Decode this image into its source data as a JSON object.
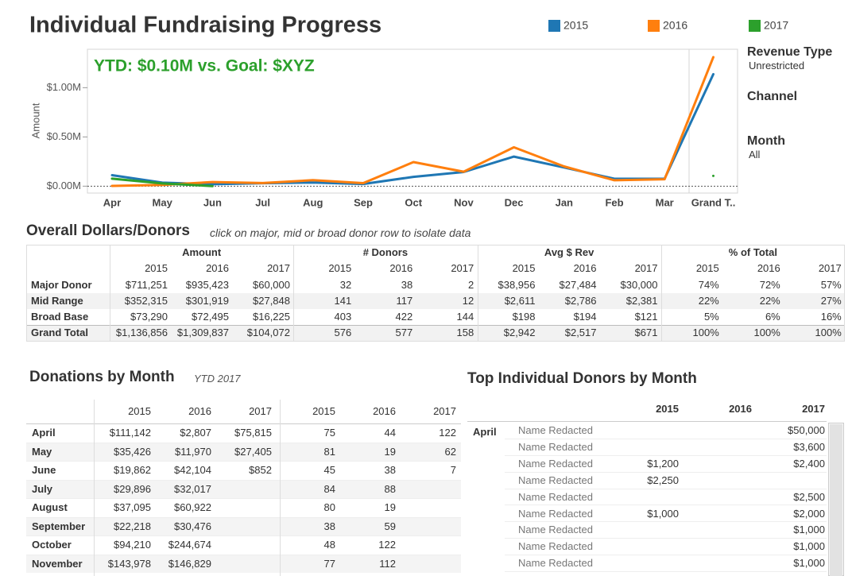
{
  "header": {
    "title": "Individual Fundraising Progress"
  },
  "chart_data": {
    "type": "line",
    "y_label": "Amount",
    "annotation": "YTD: $0.10M vs. Goal: $XYZ",
    "categories": [
      "Apr",
      "May",
      "Jun",
      "Jul",
      "Aug",
      "Sep",
      "Oct",
      "Nov",
      "Dec",
      "Jan",
      "Feb",
      "Mar",
      "Grand T.."
    ],
    "series": [
      {
        "name": "2015",
        "color": "#1f77b4",
        "values": [
          111142,
          35426,
          19862,
          29896,
          37095,
          22218,
          94210,
          143978,
          300000,
          190000,
          75000,
          75000,
          1136856
        ]
      },
      {
        "name": "2016",
        "color": "#ff7f0e",
        "values": [
          2807,
          11970,
          42104,
          32017,
          60922,
          30476,
          244674,
          146829,
          395000,
          200000,
          60000,
          70000,
          1309837
        ]
      },
      {
        "name": "2017",
        "color": "#2ca02c",
        "values": [
          75815,
          27405,
          852,
          null,
          null,
          null,
          null,
          null,
          null,
          null,
          null,
          null,
          104072
        ]
      }
    ],
    "ylim": [
      -70000,
      1390000
    ],
    "yticks": [
      {
        "value": 0,
        "label": "$0.00M"
      },
      {
        "value": 500000,
        "label": "$0.50M"
      },
      {
        "value": 1000000,
        "label": "$1.00M"
      }
    ],
    "legend": "top"
  },
  "filters": [
    {
      "label": "Revenue Type",
      "value": "Unrestricted"
    },
    {
      "label": "Channel"
    },
    {
      "label": "Month",
      "value": "All"
    }
  ],
  "summary_table": {
    "title": "Overall Dollars/Donors",
    "subtitle": "click on major, mid or broad donor row to isolate data",
    "groups": [
      "Amount",
      "# Donors",
      "Avg $ Rev",
      "% of Total"
    ],
    "years": [
      "2015",
      "2016",
      "2017"
    ],
    "rows": [
      {
        "label": "Major Donor",
        "cells": [
          "$711,251",
          "$935,423",
          "$60,000",
          "32",
          "38",
          "2",
          "$38,956",
          "$27,484",
          "$30,000",
          "74%",
          "72%",
          "57%"
        ]
      },
      {
        "label": "Mid Range",
        "cells": [
          "$352,315",
          "$301,919",
          "$27,848",
          "141",
          "117",
          "12",
          "$2,611",
          "$2,786",
          "$2,381",
          "22%",
          "22%",
          "27%"
        ]
      },
      {
        "label": "Broad Base",
        "cells": [
          "$73,290",
          "$72,495",
          "$16,225",
          "403",
          "422",
          "144",
          "$198",
          "$194",
          "$121",
          "5%",
          "6%",
          "16%"
        ]
      },
      {
        "label": "Grand Total",
        "cells": [
          "$1,136,856",
          "$1,309,837",
          "$104,072",
          "576",
          "577",
          "158",
          "$2,942",
          "$2,517",
          "$671",
          "100%",
          "100%",
          "100%"
        ]
      }
    ]
  },
  "monthly_table": {
    "title": "Donations by Month",
    "subtitle": "YTD 2017",
    "years": [
      "2015",
      "2016",
      "2017"
    ],
    "rows": [
      {
        "label": "April",
        "cells": [
          "$111,142",
          "$2,807",
          "$75,815",
          "75",
          "44",
          "122"
        ]
      },
      {
        "label": "May",
        "cells": [
          "$35,426",
          "$11,970",
          "$27,405",
          "81",
          "19",
          "62"
        ]
      },
      {
        "label": "June",
        "cells": [
          "$19,862",
          "$42,104",
          "$852",
          "45",
          "38",
          "7"
        ]
      },
      {
        "label": "July",
        "cells": [
          "$29,896",
          "$32,017",
          null,
          "84",
          "88",
          null
        ]
      },
      {
        "label": "August",
        "cells": [
          "$37,095",
          "$60,922",
          null,
          "80",
          "19",
          null
        ]
      },
      {
        "label": "September",
        "cells": [
          "$22,218",
          "$30,476",
          null,
          "38",
          "59",
          null
        ]
      },
      {
        "label": "October",
        "cells": [
          "$94,210",
          "$244,674",
          null,
          "48",
          "122",
          null
        ]
      },
      {
        "label": "November",
        "cells": [
          "$143,978",
          "$146,829",
          null,
          "77",
          "112",
          null
        ]
      }
    ]
  },
  "donors_table": {
    "title": "Top Individual Donors by Month",
    "years": [
      "2015",
      "2016",
      "2017"
    ],
    "month": "April",
    "rows": [
      {
        "name": "Name Redacted",
        "cells": [
          null,
          null,
          "$50,000"
        ]
      },
      {
        "name": "Name Redacted",
        "cells": [
          null,
          null,
          "$3,600"
        ]
      },
      {
        "name": "Name Redacted",
        "cells": [
          "$1,200",
          null,
          "$2,400"
        ]
      },
      {
        "name": "Name Redacted",
        "cells": [
          "$2,250",
          null,
          null
        ]
      },
      {
        "name": "Name Redacted",
        "cells": [
          null,
          null,
          "$2,500"
        ]
      },
      {
        "name": "Name Redacted",
        "cells": [
          "$1,000",
          null,
          "$2,000"
        ]
      },
      {
        "name": "Name Redacted",
        "cells": [
          null,
          null,
          "$1,000"
        ]
      },
      {
        "name": "Name Redacted",
        "cells": [
          null,
          null,
          "$1,000"
        ]
      },
      {
        "name": "Name Redacted",
        "cells": [
          null,
          null,
          "$1,000"
        ]
      }
    ]
  }
}
